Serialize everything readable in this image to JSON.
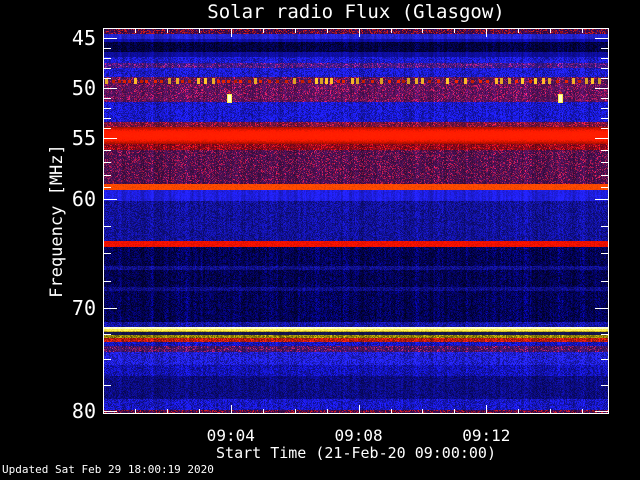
{
  "title": "Solar radio Flux (Glasgow)",
  "footer": {
    "updated": "Updated Sat Feb 29 18:00:19 2020"
  },
  "colors": {
    "background": "#000000",
    "frame": "#ffffff",
    "text": "#ffffff"
  },
  "chart_data": {
    "type": "heatmap",
    "subtype": "radio-spectrogram",
    "title": "Solar radio Flux (Glasgow)",
    "xlabel": "Start Time (21-Feb-20 09:00:00)",
    "ylabel": "Frequency [MHz]",
    "x_range_minutes": [
      0,
      15.84
    ],
    "x_major_every_minutes": 4,
    "x_minor_every_minutes": 1,
    "x_ticks": [
      {
        "label": "09:04",
        "minute": 4
      },
      {
        "label": "09:08",
        "minute": 8
      },
      {
        "label": "09:12",
        "minute": 12
      }
    ],
    "y_axis_inverted": true,
    "y_ticks": [
      {
        "label": "45",
        "pos": 0.026
      },
      {
        "label": "50",
        "pos": 0.156
      },
      {
        "label": "55",
        "pos": 0.286
      },
      {
        "label": "60",
        "pos": 0.442
      },
      {
        "label": "70",
        "pos": 0.725
      },
      {
        "label": "80",
        "pos": 0.992
      }
    ],
    "y_minor_subdivisions": [
      5,
      5,
      5,
      4,
      4
    ],
    "freq_anchors": [
      [
        44.0,
        0.0
      ],
      [
        45,
        0.026
      ],
      [
        50,
        0.156
      ],
      [
        55,
        0.286
      ],
      [
        60,
        0.442
      ],
      [
        70,
        0.725
      ],
      [
        80,
        0.992
      ],
      [
        80.4,
        1.0
      ]
    ],
    "bands": [
      {
        "f0": 44.0,
        "f1": 44.55,
        "color": "#3c0a52",
        "texture": "edge"
      },
      {
        "f0": 44.55,
        "f1": 45.05,
        "color": "#2222cc",
        "texture": "smooth"
      },
      {
        "f0": 45.05,
        "f1": 45.35,
        "color": "#0d0da8",
        "texture": "smooth"
      },
      {
        "f0": 45.35,
        "f1": 46.35,
        "color": "#020248",
        "texture": "streaks"
      },
      {
        "f0": 46.35,
        "f1": 46.85,
        "color": "#0d0d9a",
        "texture": "smooth"
      },
      {
        "f0": 46.85,
        "f1": 47.5,
        "color": "#1c1cd8",
        "texture": "weave"
      },
      {
        "f0": 47.5,
        "f1": 47.95,
        "color": "#38188c",
        "texture": "mottle"
      },
      {
        "f0": 47.95,
        "f1": 48.9,
        "color": "#1c1cd8",
        "texture": "weave"
      },
      {
        "f0": 48.9,
        "f1": 49.6,
        "color": "#4a1458",
        "texture": "mottle"
      },
      {
        "f0": 49.6,
        "f1": 51.35,
        "color": "#54125e",
        "texture": "mottle"
      },
      {
        "f0": 51.35,
        "f1": 53.35,
        "color": "#1a1ad4",
        "texture": "weave"
      },
      {
        "f0": 53.35,
        "f1": 53.85,
        "color": "#6a1240",
        "texture": "mottle"
      },
      {
        "f0": 53.85,
        "f1": 55.5,
        "color": "#ee1800",
        "texture": "redband"
      },
      {
        "f0": 55.5,
        "f1": 56.0,
        "color": "#82081c",
        "texture": "mottle"
      },
      {
        "f0": 56.0,
        "f1": 58.75,
        "color": "#46104f",
        "texture": "mottle"
      },
      {
        "f0": 58.75,
        "f1": 59.25,
        "color": "#ff4800",
        "texture": "line"
      },
      {
        "f0": 59.25,
        "f1": 60.25,
        "color": "#1e1ede",
        "texture": "smooth"
      },
      {
        "f0": 60.25,
        "f1": 63.9,
        "color": "#12129f",
        "texture": "weave"
      },
      {
        "f0": 63.9,
        "f1": 64.45,
        "color": "#ee1000",
        "texture": "line"
      },
      {
        "f0": 64.45,
        "f1": 66.2,
        "color": "#03035e",
        "texture": "streaks"
      },
      {
        "f0": 66.2,
        "f1": 66.55,
        "color": "#101090",
        "texture": "weave"
      },
      {
        "f0": 66.55,
        "f1": 68.1,
        "color": "#03035a",
        "texture": "streaks"
      },
      {
        "f0": 68.1,
        "f1": 68.45,
        "color": "#0e0e8c",
        "texture": "weave"
      },
      {
        "f0": 68.45,
        "f1": 71.35,
        "color": "#030360",
        "texture": "streaks"
      },
      {
        "f0": 71.35,
        "f1": 71.85,
        "color": "#1414aa",
        "texture": "weave"
      },
      {
        "f0": 71.85,
        "f1": 72.35,
        "color": "#ffee55",
        "texture": "yellowline"
      },
      {
        "f0": 72.35,
        "f1": 72.6,
        "color": "#14144a",
        "texture": "smooth"
      },
      {
        "f0": 72.6,
        "f1": 72.95,
        "color": "#9a8c08",
        "texture": "weave"
      },
      {
        "f0": 72.95,
        "f1": 73.3,
        "color": "#aa1a10",
        "texture": "mottle"
      },
      {
        "f0": 73.3,
        "f1": 73.75,
        "color": "#1616c8",
        "texture": "weave"
      },
      {
        "f0": 73.75,
        "f1": 74.3,
        "color": "#3c1468",
        "texture": "mottle"
      },
      {
        "f0": 74.3,
        "f1": 75.55,
        "color": "#2020dd",
        "texture": "weave"
      },
      {
        "f0": 75.55,
        "f1": 76.65,
        "color": "#1414bc",
        "texture": "weave"
      },
      {
        "f0": 76.65,
        "f1": 78.85,
        "color": "#0c0c86",
        "texture": "weave"
      },
      {
        "f0": 78.85,
        "f1": 79.95,
        "color": "#1818c8",
        "texture": "weave"
      },
      {
        "f0": 79.95,
        "f1": 80.4,
        "color": "#400a50",
        "texture": "edge"
      }
    ],
    "rfi_line": {
      "freq_mhz": 49.25,
      "red_color": "#dc2000",
      "yellow_color": "#f2b226",
      "yellow_fraction": 0.42
    },
    "bursts": [
      {
        "minute": 3.95,
        "freq_mhz": 51.0
      },
      {
        "minute": 14.32,
        "freq_mhz": 51.0
      }
    ],
    "burst_color": "#ffef50"
  }
}
